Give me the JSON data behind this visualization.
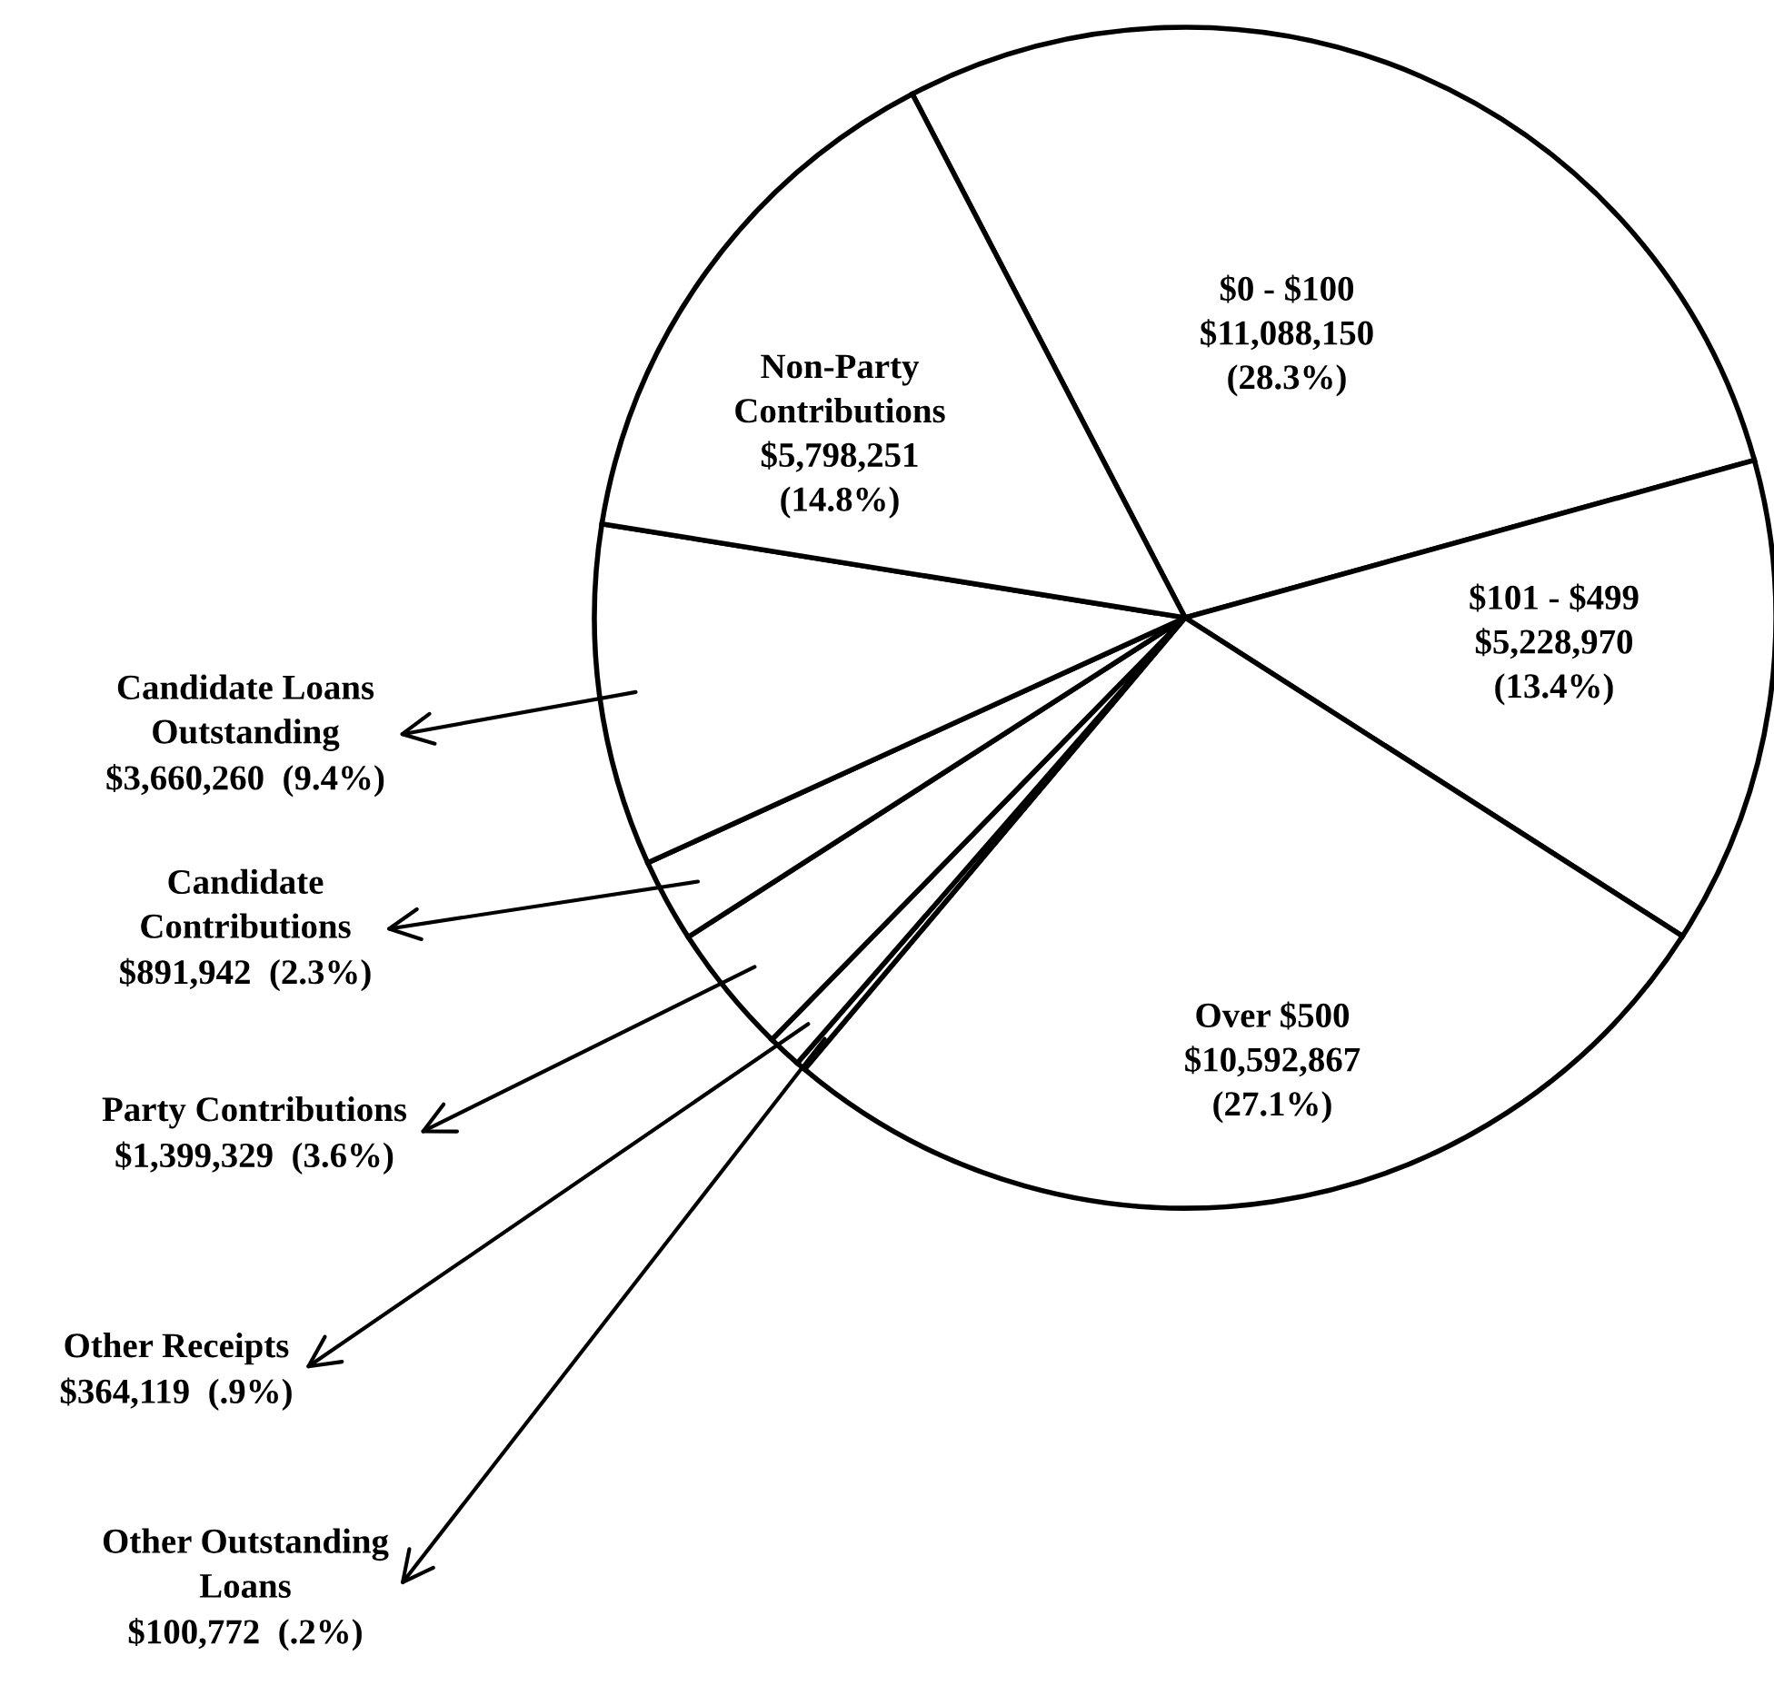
{
  "chart_data": {
    "type": "pie",
    "categories": [
      "$0 - $100",
      "$101 - $499",
      "Over $500",
      "Other Outstanding\nLoans",
      "Other Receipts",
      "Party Contributions",
      "Candidate\nContributions",
      "Candidate Loans\nOutstanding",
      "Non-Party\nContributions"
    ],
    "values": [
      11088150,
      5228970,
      10592867,
      100772,
      364119,
      1399329,
      891942,
      3660260,
      5798251
    ],
    "value_labels": [
      "$11,088,150\n(28.3%)",
      "$5,228,970\n(13.4%)",
      "$10,592,867\n(27.1%)",
      "$100,772  (.2%)",
      "$364,119  (.9%)",
      "$1,399,329  (3.6%)",
      "$891,942  (2.3%)",
      "$3,660,260  (9.4%)",
      "$5,798,251\n(14.8%)"
    ],
    "legend": "left",
    "colors": [
      "#ffffff",
      "#ffffff",
      "#ffffff",
      "#ffffff",
      "#ffffff",
      "#ffffff",
      "#ffffff",
      "#ffffff",
      "#ffffff"
    ]
  }
}
